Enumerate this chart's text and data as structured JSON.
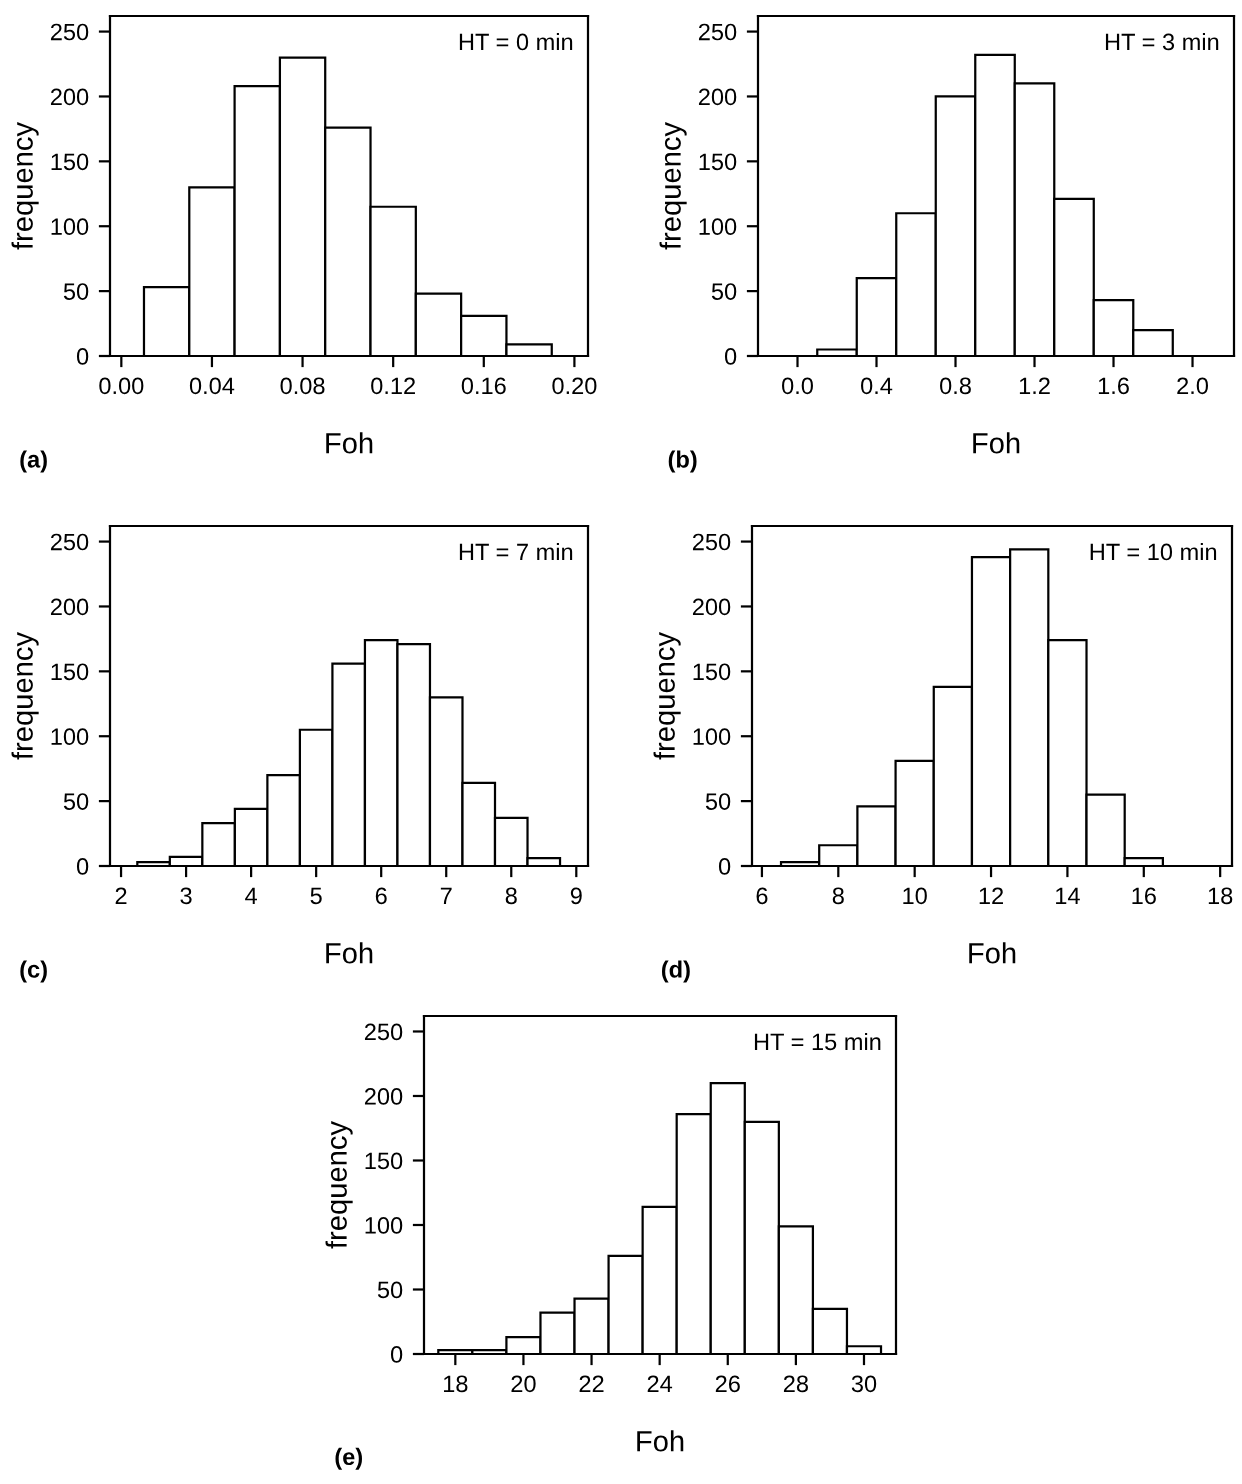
{
  "chart_data": [
    {
      "type": "histogram",
      "xlabel": "Foh",
      "ylabel": "frequency",
      "annotations": [
        "HT = 0 min",
        "(a)"
      ],
      "bins": [
        0.01,
        0.03,
        0.05,
        0.07,
        0.09,
        0.11,
        0.13,
        0.15,
        0.17,
        0.19
      ],
      "values": [
        53,
        130,
        208,
        230,
        176,
        115,
        48,
        31,
        9
      ],
      "color": "#ffffff",
      "xlim": [
        -0.005,
        0.206
      ],
      "xticks": [
        {
          "value": 0,
          "label": "0.00"
        },
        0.04,
        0.08,
        0.12,
        0.16,
        {
          "value": 0.2,
          "label": "0.20"
        }
      ],
      "ylim": [
        0,
        262
      ],
      "yticks": [
        0,
        50,
        100,
        150,
        200,
        250
      ],
      "grid": false
    },
    {
      "type": "histogram",
      "xlabel": "Foh",
      "ylabel": "frequency",
      "annotations": [
        "HT = 3 min",
        "(b)"
      ],
      "bins": [
        0.1,
        0.3,
        0.5,
        0.7,
        0.9,
        1.1,
        1.3,
        1.5,
        1.7,
        1.9
      ],
      "values": [
        5,
        60,
        110,
        200,
        232,
        210,
        121,
        43,
        20
      ],
      "color": "#ffffff",
      "xlim": [
        -0.2,
        2.21
      ],
      "xticks": [
        {
          "value": 0,
          "label": "0.0"
        },
        0.4,
        0.8,
        1.2,
        1.6,
        {
          "value": 2,
          "label": "2.0"
        }
      ],
      "ylim": [
        0,
        262
      ],
      "yticks": [
        0,
        50,
        100,
        150,
        200,
        250
      ],
      "grid": false
    },
    {
      "type": "histogram",
      "xlabel": "Foh",
      "ylabel": "frequency",
      "annotations": [
        "HT = 7 min",
        "(c)"
      ],
      "bins": [
        2.25,
        2.75,
        3.25,
        3.75,
        4.25,
        4.75,
        5.25,
        5.75,
        6.25,
        6.75,
        7.25,
        7.75,
        8.25,
        8.75
      ],
      "values": [
        3,
        7,
        33,
        44,
        70,
        105,
        156,
        174,
        171,
        130,
        64,
        37,
        6
      ],
      "color": "#ffffff",
      "xlim": [
        1.83,
        9.18
      ],
      "xticks": [
        2,
        3,
        4,
        5,
        6,
        7,
        8,
        9
      ],
      "ylim": [
        0,
        262
      ],
      "yticks": [
        0,
        50,
        100,
        150,
        200,
        250
      ],
      "grid": false
    },
    {
      "type": "histogram",
      "xlabel": "Foh",
      "ylabel": "frequency",
      "annotations": [
        "HT = 10 min",
        "(d)"
      ],
      "bins": [
        6.5,
        7.5,
        8.5,
        9.5,
        10.5,
        11.5,
        12.5,
        13.5,
        14.5,
        15.5,
        16.5
      ],
      "values": [
        3,
        16,
        46,
        81,
        138,
        238,
        244,
        174,
        55,
        6
      ],
      "color": "#ffffff",
      "xlim": [
        5.74,
        18.31
      ],
      "xticks": [
        6,
        8,
        10,
        12,
        14,
        16,
        18
      ],
      "ylim": [
        0,
        262
      ],
      "yticks": [
        0,
        50,
        100,
        150,
        200,
        250
      ],
      "grid": false
    },
    {
      "type": "histogram",
      "xlabel": "Foh",
      "ylabel": "frequency",
      "annotations": [
        "HT = 15 min",
        "(e)"
      ],
      "bins": [
        17.5,
        18.5,
        19.5,
        20.5,
        21.5,
        22.5,
        23.5,
        24.5,
        25.5,
        26.5,
        27.5,
        28.5,
        29.5,
        30.5
      ],
      "values": [
        3,
        3,
        13,
        32,
        43,
        76,
        114,
        186,
        210,
        180,
        99,
        35,
        6
      ],
      "color": "#ffffff",
      "xlim": [
        17.08,
        30.94
      ],
      "xticks": [
        18,
        20,
        22,
        24,
        26,
        28,
        30
      ],
      "ylim": [
        0,
        262
      ],
      "yticks": [
        0,
        50,
        100,
        150,
        200,
        250
      ],
      "grid": false
    }
  ]
}
